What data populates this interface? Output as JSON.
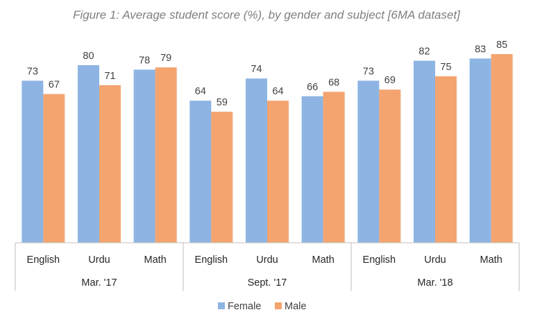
{
  "chart_data": {
    "type": "bar",
    "title": "Figure 1: Average student score (%), by gender and subject [6MA dataset]",
    "groups": [
      {
        "label": "Mar. '17",
        "categories": [
          "English",
          "Urdu",
          "Math"
        ]
      },
      {
        "label": "Sept. '17",
        "categories": [
          "English",
          "Urdu",
          "Math"
        ]
      },
      {
        "label": "Mar. '18",
        "categories": [
          "English",
          "Urdu",
          "Math"
        ]
      }
    ],
    "series": [
      {
        "name": "Female",
        "color": "#8db4e2",
        "values": [
          73,
          80,
          78,
          64,
          74,
          66,
          73,
          82,
          83
        ]
      },
      {
        "name": "Male",
        "color": "#f4a46f",
        "values": [
          67,
          71,
          79,
          59,
          64,
          68,
          69,
          75,
          85
        ]
      }
    ],
    "ylim": [
      0,
      85
    ],
    "grid": false,
    "legend_position": "bottom"
  }
}
